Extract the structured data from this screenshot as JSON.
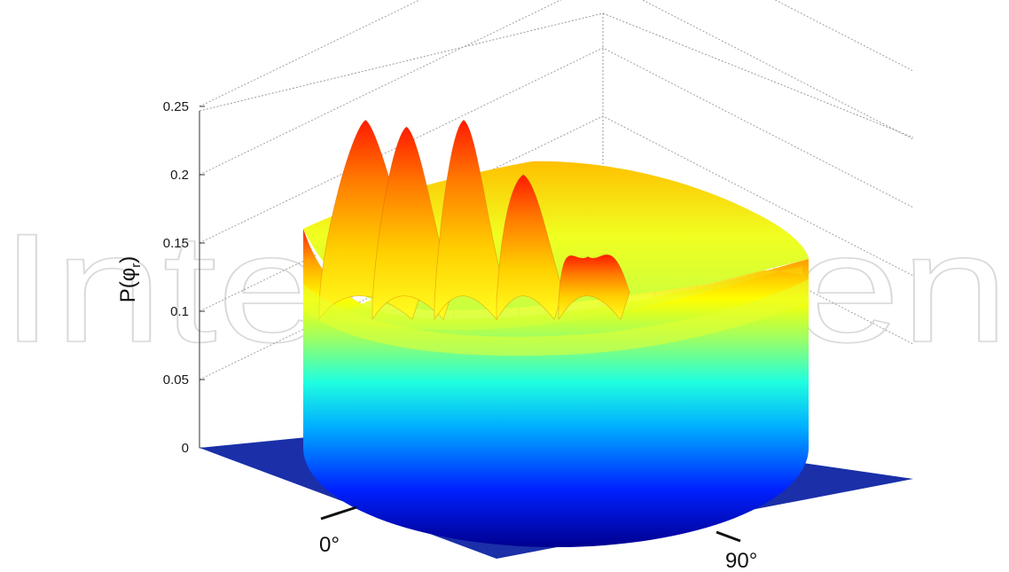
{
  "watermark": "IntechOpen",
  "chart_data": {
    "type": "surface3d",
    "ylabel": "P(φr)",
    "ylabel_main": "P(φ",
    "ylabel_sub": "r",
    "ylabel_close": ")",
    "zlim": [
      0,
      0.25
    ],
    "zticks": [
      "0",
      "0.05",
      "0.1",
      "0.15",
      "0.2",
      "0.25"
    ],
    "angle_labels": [
      "0°",
      "90°"
    ],
    "grid": true,
    "colormap": "jet",
    "rim_level": 0.16,
    "ridges": [
      {
        "angle": "0°",
        "peak": 0.24
      },
      {
        "angle": "",
        "peak": 0.235
      },
      {
        "angle": "",
        "peak": 0.24
      },
      {
        "angle": "",
        "peak": 0.2
      },
      {
        "angle": "90°",
        "peak": 0.14
      }
    ]
  }
}
